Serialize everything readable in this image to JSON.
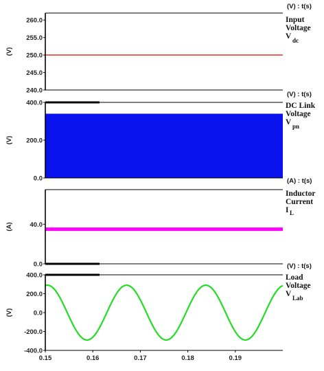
{
  "chart_data": [
    {
      "type": "line",
      "unit_label": "(V) : t(s)",
      "ylabel": "(V)",
      "side_label": {
        "lines": [
          "Input",
          "Voltage",
          "V"
        ],
        "subscript": "dc"
      },
      "ylim": [
        240.0,
        262.0
      ],
      "yticks": [
        "260.0",
        "255.0",
        "250.0",
        "245.0",
        "240.0"
      ],
      "ytick_values": [
        260,
        255,
        250,
        245,
        240
      ],
      "xlim": [
        0.15,
        0.2
      ],
      "series": [
        {
          "color": "#e8403c",
          "x": [
            0.15,
            0.2
          ],
          "y": [
            250,
            250
          ]
        }
      ]
    },
    {
      "type": "area",
      "unit_label": "(V) : t(s)",
      "ylabel": "(V)",
      "side_label": {
        "lines": [
          "DC Link",
          "Voltage",
          "V"
        ],
        "subscript": "pn"
      },
      "ylim": [
        0,
        400
      ],
      "yticks": [
        "400.0",
        "200.0",
        "0.0"
      ],
      "ytick_values": [
        400,
        200,
        0
      ],
      "xlim": [
        0.15,
        0.2
      ],
      "series": [
        {
          "color": "#0a12ee",
          "x": [
            0.15,
            0.2
          ],
          "ymin": 0,
          "ymax": 340
        }
      ]
    },
    {
      "type": "line",
      "unit_label": "(A) : t(s)",
      "ylabel": "(A)",
      "side_label": {
        "lines": [
          "Inductor",
          "Current"
        ],
        "subscript": "L",
        "prefix": "I"
      },
      "ylim": [
        0,
        75
      ],
      "yticks": [
        "40.0",
        "0.0"
      ],
      "ytick_values": [
        40,
        0
      ],
      "xlim": [
        0.15,
        0.2
      ],
      "series": [
        {
          "color": "#ff00ff",
          "x": [
            0.15,
            0.2
          ],
          "y": [
            35,
            35
          ]
        }
      ]
    },
    {
      "type": "line",
      "unit_label": "(V) : t(s)",
      "ylabel": "(V)",
      "side_label": {
        "lines": [
          "Load",
          "Voltage",
          "V"
        ],
        "subscript": "Lab"
      },
      "ylim": [
        -400,
        400
      ],
      "yticks": [
        "400.0",
        "200.0",
        "0.0",
        "-200.0",
        "-400.0"
      ],
      "ytick_values": [
        400,
        200,
        0,
        -200,
        -400
      ],
      "xlim": [
        0.15,
        0.2
      ],
      "xticks": [
        "0.15",
        "0.16",
        "0.17",
        "0.18",
        "0.19"
      ],
      "xtick_values": [
        0.15,
        0.16,
        0.17,
        0.18,
        0.19
      ],
      "series": [
        {
          "color": "#22dd22",
          "function": "sine",
          "amplitude": 290,
          "frequency_hz": 60,
          "phase_rad": 1.4
        }
      ]
    }
  ]
}
